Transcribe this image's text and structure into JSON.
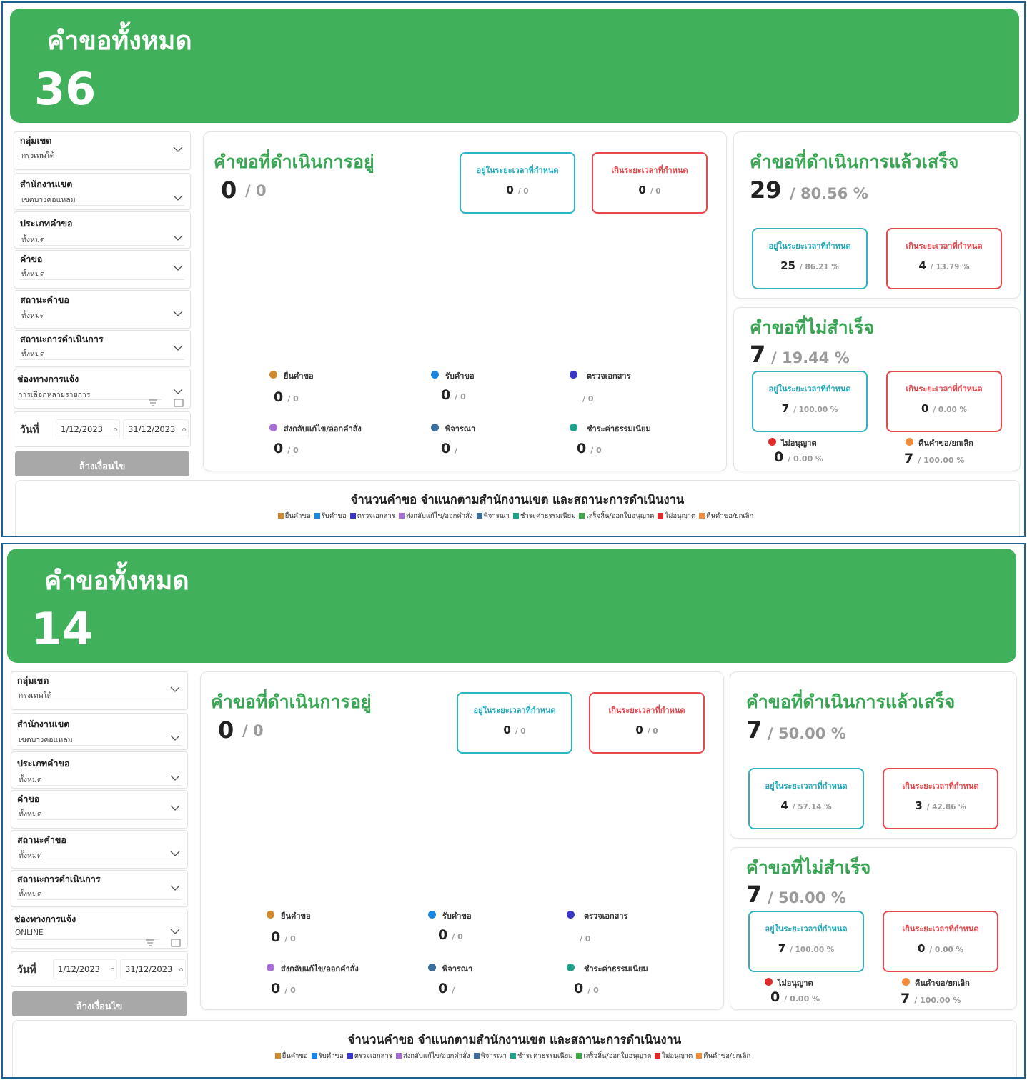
{
  "panels": [
    {
      "banner": {
        "title": "คำขอทั้งหมด",
        "count": "36"
      },
      "filters": [
        {
          "label": "กลุ่มเขต",
          "value": "กรุงเทพใต้"
        },
        {
          "label": "สำนักงานเขต",
          "value": "เขตบางคอแหลม"
        },
        {
          "label": "ประเภทคำขอ",
          "value": "ทั้งหมด"
        },
        {
          "label": "คำขอ",
          "value": "ทั้งหมด"
        },
        {
          "label": "สถานะคำขอ",
          "value": "ทั้งหมด"
        },
        {
          "label": "สถานะการดำเนินการ",
          "value": "ทั้งหมด"
        },
        {
          "label": "ช่องทางการแจ้ง",
          "value": "การเลือกหลายรายการ"
        }
      ],
      "date": {
        "label": "วันที่",
        "from": "1/12/2023",
        "to": "31/12/2023"
      },
      "clear_label": "ล้างเงื่อนไข",
      "in_progress": {
        "title": "คำขอที่ดำเนินการอยู่",
        "count": "0",
        "sub": "/ 0",
        "on_time": {
          "title": "อยู่ในระยะเวลาที่กำหนด",
          "value": "0",
          "sub": "/ 0"
        },
        "overdue": {
          "title": "เกินระยะเวลาที่กำหนด",
          "value": "0",
          "sub": "/ 0"
        },
        "stats": [
          {
            "label": "ยื่นคำขอ",
            "value": "0",
            "sub": "/ 0",
            "color": "#d08a2e"
          },
          {
            "label": "รับคำขอ",
            "value": "0",
            "sub": "/ 0",
            "color": "#1a86e0"
          },
          {
            "label": "ตรวจเอกสาร",
            "value": "",
            "sub": "/ 0",
            "color": "#3a36c8"
          },
          {
            "label": "ส่งกลับแก้ไข/ออกคำสั่ง",
            "value": "0",
            "sub": "/ 0",
            "color": "#a56fd6"
          },
          {
            "label": "พิจารณา",
            "value": "0",
            "sub": "/",
            "color": "#3b6fa0"
          },
          {
            "label": "ชำระค่าธรรมเนียม",
            "value": "0",
            "sub": "/ 0",
            "color": "#1fa08a"
          }
        ]
      },
      "completed": {
        "title": "คำขอที่ดำเนินการแล้วเสร็จ",
        "count": "29",
        "sub": "/ 80.56 %",
        "on_time": {
          "title": "อยู่ในระยะเวลาที่กำหนด",
          "value": "25",
          "sub": "/ 86.21 %"
        },
        "overdue": {
          "title": "เกินระยะเวลาที่กำหนด",
          "value": "4",
          "sub": "/ 13.79 %"
        }
      },
      "failed": {
        "title": "คำขอที่ไม่สำเร็จ",
        "count": "7",
        "sub": "/ 19.44 %",
        "on_time": {
          "title": "อยู่ในระยะเวลาที่กำหนด",
          "value": "7",
          "sub": "/ 100.00 %"
        },
        "overdue": {
          "title": "เกินระยะเวลาที่กำหนด",
          "value": "0",
          "sub": "/ 0.00 %"
        },
        "rejected": {
          "label": "ไม่อนุญาต",
          "value": "0",
          "sub": "/ 0.00 %",
          "color": "#e02b2b"
        },
        "cancelled": {
          "label": "คืนคำขอ/ยกเลิก",
          "value": "7",
          "sub": "/ 100.00 %",
          "color": "#f28c3a"
        }
      },
      "chart": {
        "title": "จำนวนคำขอ  จำแนกตามสำนักงานเขต และสถานะการดำเนินงาน"
      }
    },
    {
      "banner": {
        "title": "คำขอทั้งหมด",
        "count": "14"
      },
      "filters": [
        {
          "label": "กลุ่มเขต",
          "value": "กรุงเทพใต้"
        },
        {
          "label": "สำนักงานเขต",
          "value": "เขตบางคอแหลม"
        },
        {
          "label": "ประเภทคำขอ",
          "value": "ทั้งหมด"
        },
        {
          "label": "คำขอ",
          "value": "ทั้งหมด"
        },
        {
          "label": "สถานะคำขอ",
          "value": "ทั้งหมด"
        },
        {
          "label": "สถานะการดำเนินการ",
          "value": "ทั้งหมด"
        },
        {
          "label": "ช่องทางการแจ้ง",
          "value": "ONLINE"
        }
      ],
      "date": {
        "label": "วันที่",
        "from": "1/12/2023",
        "to": "31/12/2023"
      },
      "clear_label": "ล้างเงื่อนไข",
      "in_progress": {
        "title": "คำขอที่ดำเนินการอยู่",
        "count": "0",
        "sub": "/ 0",
        "on_time": {
          "title": "อยู่ในระยะเวลาที่กำหนด",
          "value": "0",
          "sub": "/ 0"
        },
        "overdue": {
          "title": "เกินระยะเวลาที่กำหนด",
          "value": "0",
          "sub": "/ 0"
        },
        "stats": [
          {
            "label": "ยื่นคำขอ",
            "value": "0",
            "sub": "/ 0",
            "color": "#d08a2e"
          },
          {
            "label": "รับคำขอ",
            "value": "0",
            "sub": "/ 0",
            "color": "#1a86e0"
          },
          {
            "label": "ตรวจเอกสาร",
            "value": "",
            "sub": "/ 0",
            "color": "#3a36c8"
          },
          {
            "label": "ส่งกลับแก้ไข/ออกคำสั่ง",
            "value": "0",
            "sub": "/ 0",
            "color": "#a56fd6"
          },
          {
            "label": "พิจารณา",
            "value": "0",
            "sub": "/",
            "color": "#3b6fa0"
          },
          {
            "label": "ชำระค่าธรรมเนียม",
            "value": "0",
            "sub": "/ 0",
            "color": "#1fa08a"
          }
        ]
      },
      "completed": {
        "title": "คำขอที่ดำเนินการแล้วเสร็จ",
        "count": "7",
        "sub": "/ 50.00 %",
        "on_time": {
          "title": "อยู่ในระยะเวลาที่กำหนด",
          "value": "4",
          "sub": "/ 57.14 %"
        },
        "overdue": {
          "title": "เกินระยะเวลาที่กำหนด",
          "value": "3",
          "sub": "/ 42.86 %"
        }
      },
      "failed": {
        "title": "คำขอที่ไม่สำเร็จ",
        "count": "7",
        "sub": "/ 50.00 %",
        "on_time": {
          "title": "อยู่ในระยะเวลาที่กำหนด",
          "value": "7",
          "sub": "/ 100.00 %"
        },
        "overdue": {
          "title": "เกินระยะเวลาที่กำหนด",
          "value": "0",
          "sub": "/ 0.00 %"
        },
        "rejected": {
          "label": "ไม่อนุญาต",
          "value": "0",
          "sub": "/ 0.00 %",
          "color": "#e02b2b"
        },
        "cancelled": {
          "label": "คืนคำขอ/ยกเลิก",
          "value": "7",
          "sub": "/ 100.00 %",
          "color": "#f28c3a"
        }
      },
      "chart": {
        "title": "จำนวนคำขอ  จำแนกตามสำนักงานเขต และสถานะการดำเนินงาน"
      }
    }
  ],
  "legend": [
    {
      "label": "ยื่นคำขอ",
      "color": "#d08a2e"
    },
    {
      "label": "รับคำขอ",
      "color": "#1a86e0"
    },
    {
      "label": "ตรวจเอกสาร",
      "color": "#3a36c8"
    },
    {
      "label": "ส่งกลับแก้ไข/ออกคำสั่ง",
      "color": "#a56fd6"
    },
    {
      "label": "พิจารณา",
      "color": "#3b6fa0"
    },
    {
      "label": "ชำระค่าธรรมเนียม",
      "color": "#1fa08a"
    },
    {
      "label": "เสร็จสิ้น/ออกใบอนุญาต",
      "color": "#41a34a"
    },
    {
      "label": "ไม่อนุญาต",
      "color": "#e02b2b"
    },
    {
      "label": "คืนคำขอ/ยกเลิก",
      "color": "#f28c3a"
    }
  ]
}
